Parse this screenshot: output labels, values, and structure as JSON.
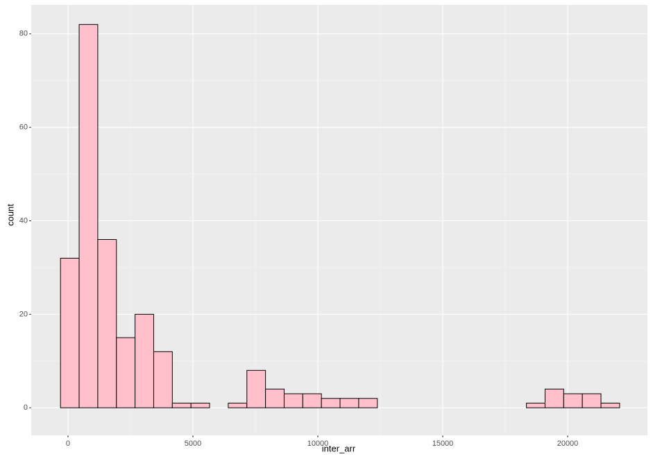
{
  "chart_data": {
    "type": "histogram",
    "x_label": "inter_arr",
    "y_label": "count",
    "bins": [
      -300,
      446,
      1192,
      1938,
      2684,
      3430,
      4176,
      4922,
      5668,
      6414,
      7160,
      7906,
      8652,
      9398,
      10144,
      10890,
      11636,
      12382,
      13128,
      13874,
      14620,
      15366,
      16112,
      16858,
      17604,
      18350,
      19096,
      19842,
      20588,
      21334,
      22080
    ],
    "counts": [
      32,
      82,
      36,
      15,
      20,
      12,
      1,
      1,
      0,
      1,
      8,
      4,
      3,
      3,
      2,
      2,
      2,
      0,
      0,
      0,
      0,
      0,
      0,
      0,
      0,
      1,
      4,
      3,
      3,
      1
    ],
    "color": "#ffc0cb",
    "edge_color": "#000000",
    "xlim": [
      -1472,
      23194
    ],
    "xticks": [
      0,
      5000,
      10000,
      15000,
      20000
    ],
    "ylim": [
      -5.9,
      86.2
    ],
    "yticks": [
      0,
      20,
      40,
      60,
      80
    ],
    "grid": true
  }
}
